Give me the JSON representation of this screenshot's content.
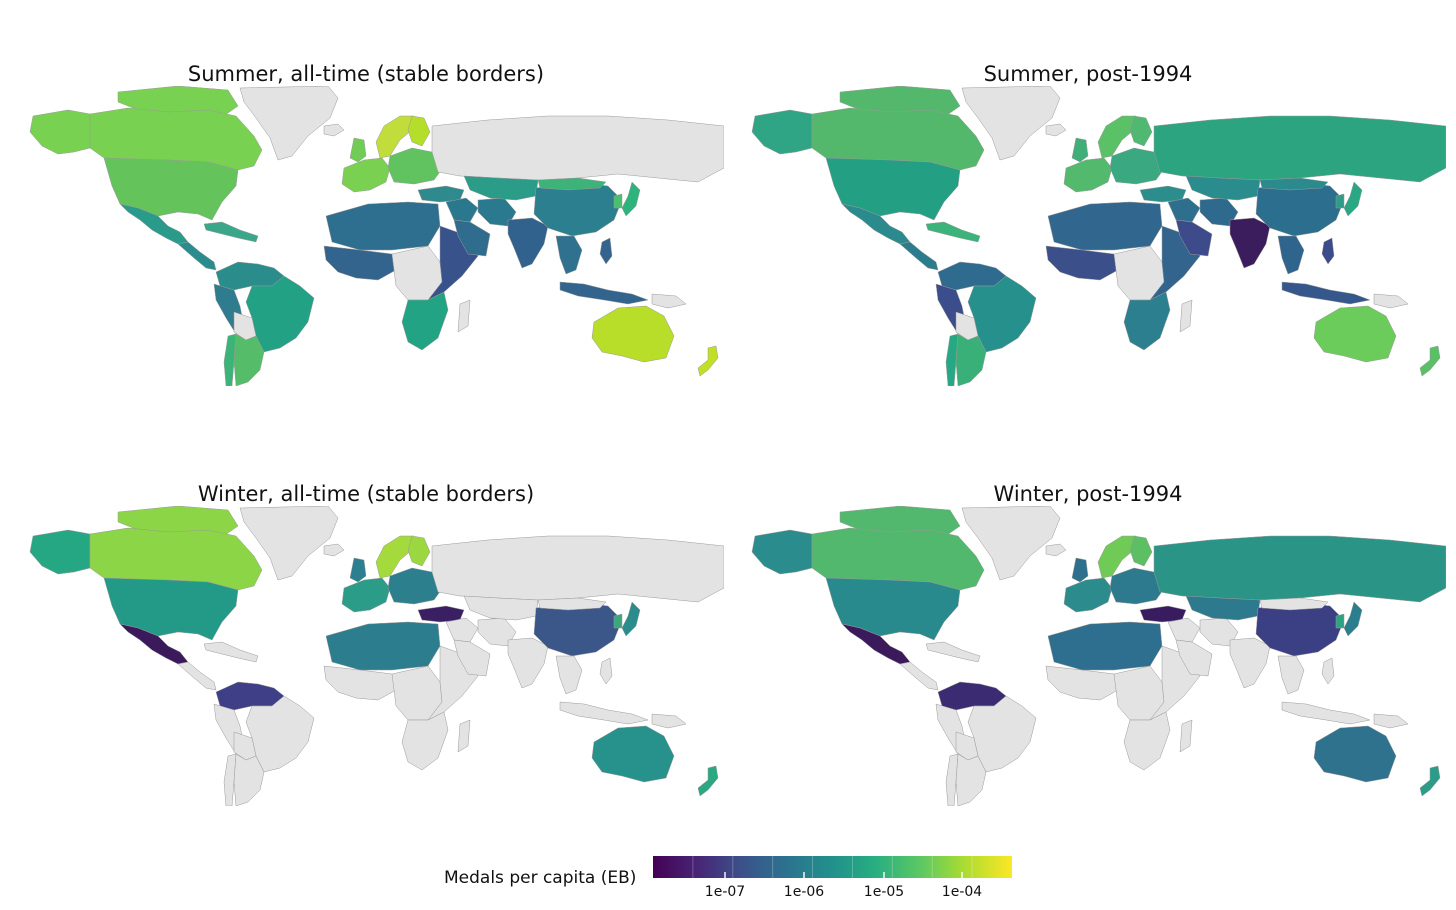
{
  "panels": [
    {
      "title": "Summer, all-time (stable borders)",
      "regions": {
        "greenland": "#e3e3e3",
        "canada": "#79d151",
        "alaska": "#79d151",
        "usa": "#65c35b",
        "mexico": "#2a9b8a",
        "central_america": "#2b8c8d",
        "caribbean": "#3ba78a",
        "south_america_north": "#2a8d8c",
        "brazil": "#22a184",
        "south_america_west": "#2f7c8e",
        "bolivia": "#e3e3e3",
        "chile": "#3bb478",
        "argentina": "#55bd69",
        "iceland": "#e3e3e3",
        "scandinavia": "#c0dd3b",
        "finland": "#b5de2b",
        "uk": "#6fcc55",
        "west_europe": "#7ad151",
        "east_europe": "#61c35f",
        "russia": "#e3e3e3",
        "turkey": "#2f8a8d",
        "north_africa": "#2e6e8e",
        "west_africa": "#32648e",
        "central_africa": "#e3e3e3",
        "east_africa": "#38538c",
        "southern_africa": "#22a383",
        "madagascar": "#e3e3e3",
        "middle_east": "#2a788e",
        "arabia": "#2f6c8e",
        "iran": "#2b798e",
        "central_asia": "#2a9c88",
        "india": "#31628e",
        "china": "#2b7f8e",
        "mongolia": "#3db279",
        "japan": "#2db37b",
        "korea": "#48c16e",
        "se_asia": "#2f718e",
        "indonesia": "#32648d",
        "philippines": "#33648d",
        "australia": "#b8de29",
        "new_zealand": "#c0df25",
        "png": "#e3e3e3",
        "arctic_islands": "#79d151"
      }
    },
    {
      "title": "Summer, post-1994",
      "regions": {
        "greenland": "#e3e3e3",
        "canada": "#53b86c",
        "alaska": "#2fa585",
        "usa": "#23a084",
        "mexico": "#2b8a8d",
        "central_america": "#2c7c8e",
        "caribbean": "#3bb37a",
        "south_america_north": "#2e6b8e",
        "brazil": "#26918c",
        "south_america_west": "#3b4d8a",
        "bolivia": "#e3e3e3",
        "chile": "#26a885",
        "argentina": "#3ab079",
        "iceland": "#e3e3e3",
        "scandinavia": "#5ac166",
        "finland": "#4fb972",
        "uk": "#40ae79",
        "west_europe": "#52b96d",
        "east_europe": "#3aa880",
        "russia": "#2ca480",
        "turkey": "#2c8e8c",
        "north_africa": "#31678e",
        "west_africa": "#3b4f8a",
        "central_africa": "#e3e3e3",
        "east_africa": "#33648d",
        "southern_africa": "#2c7f8e",
        "madagascar": "#e3e3e3",
        "middle_east": "#2e6f8e",
        "arabia": "#3e4b8a",
        "iran": "#2e6a8e",
        "central_asia": "#2a8c8d",
        "india": "#3b1c5d",
        "china": "#2b6e8e",
        "mongolia": "#2a8a8d",
        "japan": "#2aa784",
        "korea": "#2e9c86",
        "se_asia": "#2f648d",
        "indonesia": "#36578c",
        "philippines": "#3c4b89",
        "australia": "#6ccc5b",
        "new_zealand": "#59c065",
        "png": "#e3e3e3",
        "arctic_islands": "#53b86c"
      }
    },
    {
      "title": "Winter, all-time (stable borders)",
      "regions": {
        "greenland": "#e3e3e3",
        "canada": "#8cd546",
        "alaska": "#26a784",
        "usa": "#229a87",
        "mexico": "#3b1a5c",
        "central_america": "#e3e3e3",
        "caribbean": "#e3e3e3",
        "south_america_north": "#3e3f86",
        "brazil": "#e3e3e3",
        "south_america_west": "#e3e3e3",
        "bolivia": "#e3e3e3",
        "chile": "#e3e3e3",
        "argentina": "#e3e3e3",
        "iceland": "#e3e3e3",
        "scandinavia": "#a4da3b",
        "finland": "#9bd83f",
        "uk": "#2c7f8e",
        "west_europe": "#2a9c88",
        "east_europe": "#2c808e",
        "russia": "#e3e3e3",
        "turkey": "#3a1f63",
        "north_africa": "#2c7e8e",
        "west_africa": "#e3e3e3",
        "central_africa": "#e3e3e3",
        "east_africa": "#e3e3e3",
        "southern_africa": "#e3e3e3",
        "madagascar": "#e3e3e3",
        "middle_east": "#e3e3e3",
        "arabia": "#e3e3e3",
        "iran": "#e3e3e3",
        "central_asia": "#e3e3e3",
        "india": "#e3e3e3",
        "china": "#3b5789",
        "mongolia": "#e3e3e3",
        "japan": "#2b8b8d",
        "korea": "#3ba77f",
        "se_asia": "#e3e3e3",
        "indonesia": "#e3e3e3",
        "philippines": "#e3e3e3",
        "australia": "#26928b",
        "new_zealand": "#2ba881",
        "png": "#e3e3e3",
        "arctic_islands": "#8cd546"
      }
    },
    {
      "title": "Winter, post-1994",
      "regions": {
        "greenland": "#e3e3e3",
        "canada": "#52b86d",
        "alaska": "#2a8c8d",
        "usa": "#288a8d",
        "mexico": "#3b1a5c",
        "central_america": "#e3e3e3",
        "caribbean": "#e3e3e3",
        "south_america_north": "#3b2b73",
        "brazil": "#e3e3e3",
        "south_america_west": "#e3e3e3",
        "bolivia": "#e3e3e3",
        "chile": "#e3e3e3",
        "argentina": "#e3e3e3",
        "iceland": "#e3e3e3",
        "scandinavia": "#6fcb56",
        "finland": "#5cbf63",
        "uk": "#2e6f8e",
        "west_europe": "#2b8b8d",
        "east_europe": "#2d7a8e",
        "russia": "#2a9487",
        "turkey": "#391c60",
        "north_africa": "#2e6e8e",
        "west_africa": "#e3e3e3",
        "central_africa": "#e3e3e3",
        "east_africa": "#e3e3e3",
        "southern_africa": "#e3e3e3",
        "madagascar": "#e3e3e3",
        "middle_east": "#e3e3e3",
        "arabia": "#e3e3e3",
        "iran": "#e3e3e3",
        "central_asia": "#2d7a8e",
        "india": "#e3e3e3",
        "china": "#3b3f83",
        "mongolia": "#e3e3e3",
        "japan": "#2b7e8e",
        "korea": "#2ea382",
        "se_asia": "#e3e3e3",
        "indonesia": "#e3e3e3",
        "philippines": "#e3e3e3",
        "australia": "#2f728e",
        "new_zealand": "#2a9c88",
        "png": "#e3e3e3",
        "arctic_islands": "#52b86d"
      }
    }
  ],
  "legend": {
    "title": "Medals per capita (EB)",
    "ticks": [
      "1e-07",
      "1e-06",
      "1e-05",
      "1e-04"
    ],
    "colormap": "viridis",
    "scale": "log"
  }
}
